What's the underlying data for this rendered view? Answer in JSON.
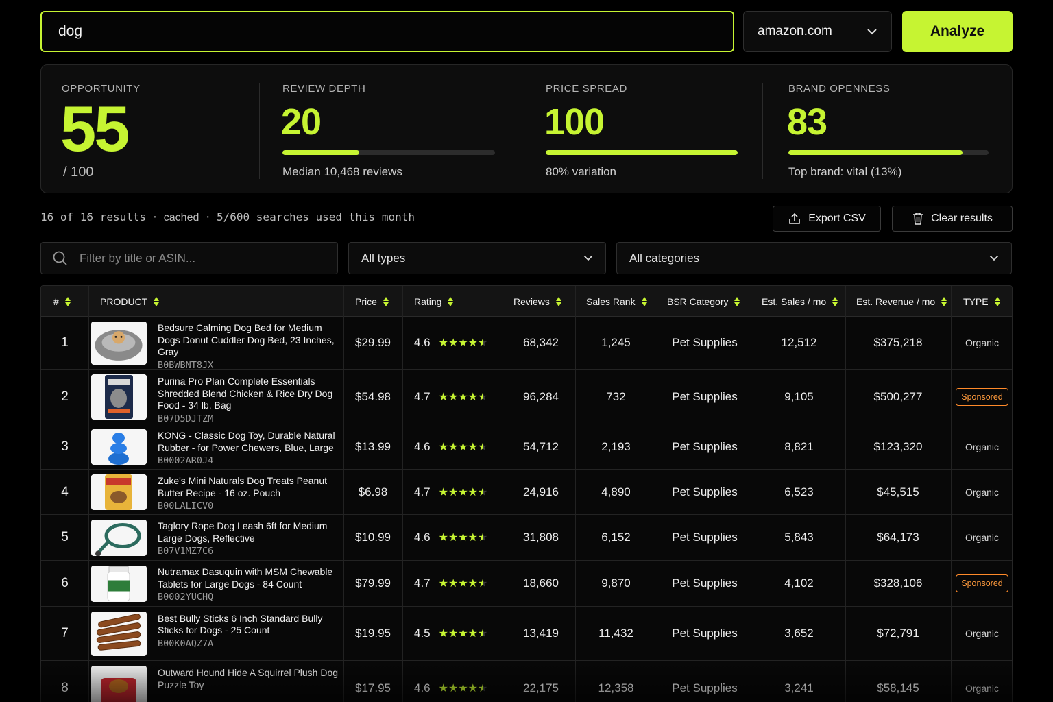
{
  "search": {
    "query": "dog",
    "marketplace": "amazon.com",
    "analyze_label": "Analyze"
  },
  "score": {
    "opportunity": {
      "label": "OPPORTUNITY",
      "value": "55",
      "suffix": "/ 100"
    },
    "review_depth": {
      "label": "REVIEW DEPTH",
      "value": "20",
      "fill": 0.36,
      "sub": "Median 10,468 reviews"
    },
    "price_spread": {
      "label": "PRICE SPREAD",
      "value": "100",
      "fill": 1.0,
      "sub": "80% variation"
    },
    "brand_openness": {
      "label": "BRAND OPENNESS",
      "value": "83",
      "fill": 0.87,
      "sub": "Top brand: vital (13%)"
    }
  },
  "status": {
    "results": "16 of 16 results",
    "cache": "cached",
    "quota": "5/600 searches used this month"
  },
  "actions": {
    "export_label": "Export CSV",
    "clear_label": "Clear results"
  },
  "filters": {
    "search_placeholder": "Filter by title or ASIN...",
    "type_value": "All types",
    "category_value": "All categories"
  },
  "table": {
    "headers": [
      "#",
      "PRODUCT",
      "Price",
      "Rating",
      "Reviews",
      "Sales Rank",
      "BSR Category",
      "Est. Sales / mo",
      "Est. Revenue / mo",
      "TYPE"
    ],
    "rows": [
      {
        "n": "1",
        "title": "Bedsure Calming Dog Bed for Medium Dogs Donut Cuddler Dog Bed, 23 Inches, Gray",
        "asin": "B0BWBNT8JX",
        "price": "$29.99",
        "rating": "4.6",
        "reviews": "68,342",
        "rank": "1,245",
        "category": "Pet Supplies",
        "sales": "12,512",
        "revenue": "$375,218",
        "type": "Organic",
        "thumb": "dog-bed"
      },
      {
        "n": "2",
        "title": "Purina Pro Plan Complete Essentials Shredded Blend Chicken & Rice Dry Dog Food - 34  lb. Bag",
        "asin": "B07D5DJTZM",
        "price": "$54.98",
        "rating": "4.7",
        "reviews": "96,284",
        "rank": "732",
        "category": "Pet Supplies",
        "sales": "9,105",
        "revenue": "$500,277",
        "type": "Sponsored",
        "thumb": "food-bag"
      },
      {
        "n": "3",
        "title": "KONG - Classic Dog Toy, Durable Natural Rubber - for Power Chewers, Blue, Large",
        "asin": "B0002AR0J4",
        "price": "$13.99",
        "rating": "4.6",
        "reviews": "54,712",
        "rank": "2,193",
        "category": "Pet Supplies",
        "sales": "8,821",
        "revenue": "$123,320",
        "type": "Organic",
        "thumb": "kong"
      },
      {
        "n": "4",
        "title": "Zuke's Mini Naturals Dog Treats Peanut Butter Recipe - 16 oz. Pouch",
        "asin": "B00LALICV0",
        "price": "$6.98",
        "rating": "4.7",
        "reviews": "24,916",
        "rank": "4,890",
        "category": "Pet Supplies",
        "sales": "6,523",
        "revenue": "$45,515",
        "type": "Organic",
        "thumb": "treats"
      },
      {
        "n": "5",
        "title": "Taglory Rope Dog Leash 6ft for Medium Large Dogs, Reflective",
        "asin": "B07V1MZ7C6",
        "price": "$10.99",
        "rating": "4.6",
        "reviews": "31,808",
        "rank": "6,152",
        "category": "Pet Supplies",
        "sales": "5,843",
        "revenue": "$64,173",
        "type": "Organic",
        "thumb": "leash"
      },
      {
        "n": "6",
        "title": "Nutramax Dasuquin with MSM Chewable Tablets for Large Dogs - 84 Count",
        "asin": "B0002YUCHQ",
        "price": "$79.99",
        "rating": "4.7",
        "reviews": "18,660",
        "rank": "9,870",
        "category": "Pet Supplies",
        "sales": "4,102",
        "revenue": "$328,106",
        "type": "Sponsored",
        "thumb": "jar"
      },
      {
        "n": "7",
        "title": "Best Bully Sticks 6 Inch Standard Bully Sticks for Dogs - 25 Count",
        "asin": "B00K0AQZ7A",
        "price": "$19.95",
        "rating": "4.5",
        "reviews": "13,419",
        "rank": "11,432",
        "category": "Pet Supplies",
        "sales": "3,652",
        "revenue": "$72,791",
        "type": "Organic",
        "thumb": "sticks"
      },
      {
        "n": "8",
        "title": "Outward Hound Hide A Squirrel Plush Dog Puzzle Toy",
        "asin": "",
        "price": "$17.95",
        "rating": "4.6",
        "reviews": "22,175",
        "rank": "12,358",
        "category": "Pet Supplies",
        "sales": "3,241",
        "revenue": "$58,145",
        "type": "Organic",
        "thumb": "plush"
      }
    ]
  },
  "colors": {
    "accent": "#c6f432",
    "sponsored": "#ff9a3c",
    "background": "#000000"
  }
}
